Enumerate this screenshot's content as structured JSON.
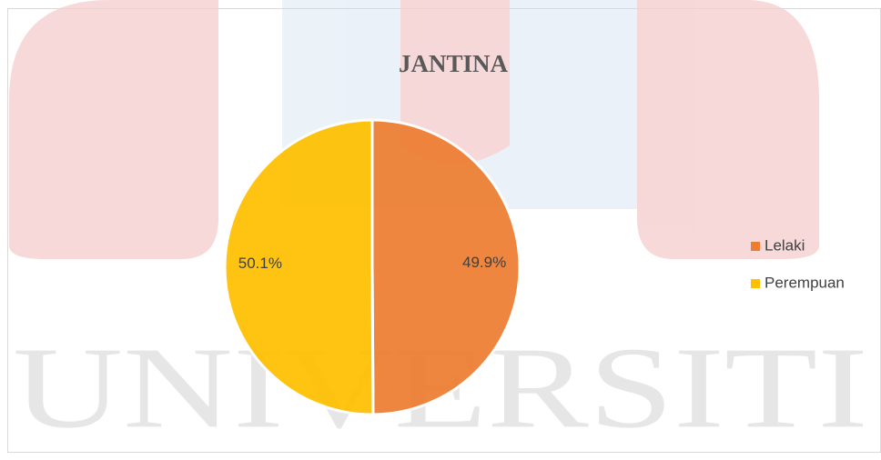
{
  "chart_data": {
    "type": "pie",
    "title": "JANTINA",
    "watermark": "UNIVERSITI",
    "categories": [
      "Lelaki",
      "Perempuan"
    ],
    "values": [
      49.9,
      50.1
    ],
    "value_labels": [
      "49.9%",
      "50.1%"
    ],
    "colors": [
      "#ed7d31",
      "#ffc000"
    ],
    "legend": "right"
  }
}
